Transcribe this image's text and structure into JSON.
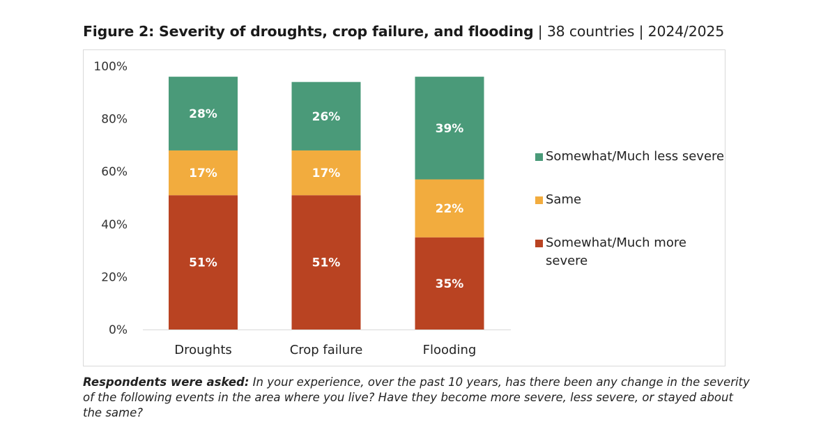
{
  "title": {
    "main": "Figure 2: Severity of droughts, crop failure, and flooding",
    "separator": "|",
    "scope": "38 countries",
    "period": "2024/2025"
  },
  "chart_data": {
    "type": "bar",
    "stacked": true,
    "title": "Figure 2: Severity of droughts, crop failure, and flooding | 38 countries | 2024/2025",
    "xlabel": "",
    "ylabel": "",
    "ylim": [
      0,
      100
    ],
    "yticks": [
      0,
      20,
      40,
      60,
      80,
      100
    ],
    "ytick_labels": [
      "0%",
      "20%",
      "40%",
      "60%",
      "80%",
      "100%"
    ],
    "grid": false,
    "legend_position": "right",
    "categories": [
      "Droughts",
      "Crop failure",
      "Flooding"
    ],
    "series": [
      {
        "name": "Somewhat/Much more severe",
        "color": "#B94322",
        "values": [
          51,
          51,
          35
        ],
        "labels": [
          "51%",
          "51%",
          "35%"
        ]
      },
      {
        "name": "Same",
        "color": "#F2AC3E",
        "values": [
          17,
          17,
          22
        ],
        "labels": [
          "17%",
          "17%",
          "22%"
        ]
      },
      {
        "name": "Somewhat/Much less severe",
        "color": "#4A9A79",
        "values": [
          28,
          26,
          39
        ],
        "labels": [
          "28%",
          "26%",
          "39%"
        ]
      }
    ]
  },
  "legend": {
    "items": [
      {
        "label": "Somewhat/Much less severe",
        "color": "#4A9A79"
      },
      {
        "label": "Same",
        "color": "#F2AC3E"
      },
      {
        "label": "Somewhat/Much more severe",
        "color": "#B94322"
      }
    ]
  },
  "caption": {
    "lead": "Respondents were asked:",
    "text": " In your experience, over the past 10 years, has there been any change in the severity of the following events in the area where you live? Have they become more severe, less severe, or stayed about the same?"
  }
}
